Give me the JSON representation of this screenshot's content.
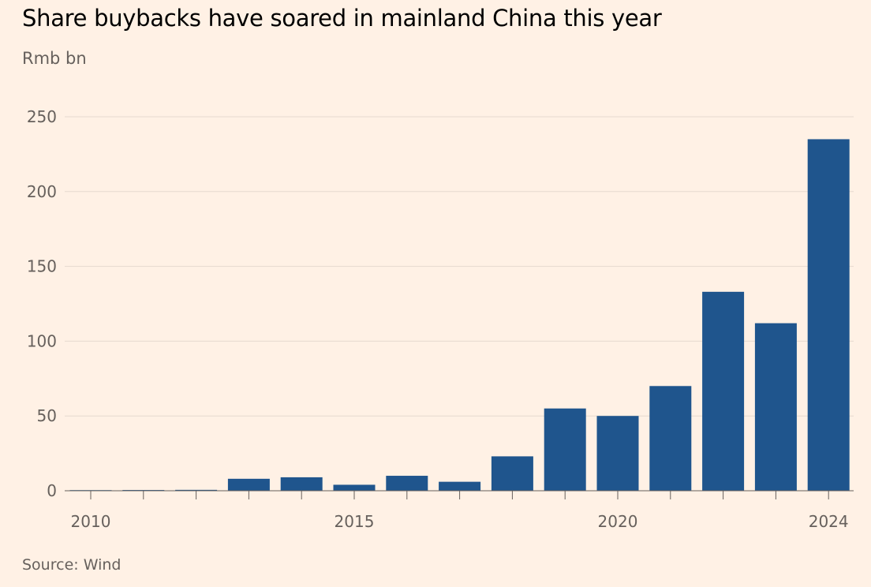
{
  "title": "Share buybacks have soared in mainland China this year",
  "subtitle": "Rmb bn",
  "source": "Source: Wind",
  "colors": {
    "background": "#fff1e5",
    "bar": "#1f558d",
    "grid": "#e6d9ce",
    "axis_text": "#66605c"
  },
  "chart_data": {
    "type": "bar",
    "title": "Share buybacks have soared in mainland China this year",
    "ylabel": "Rmb bn",
    "xlabel": "",
    "ylim": [
      0,
      250
    ],
    "yticks": [
      0,
      50,
      100,
      150,
      200,
      250
    ],
    "xtick_labels": [
      "2010",
      "2015",
      "2020",
      "2024"
    ],
    "categories": [
      "2010",
      "2011",
      "2012",
      "2013",
      "2014",
      "2015",
      "2016",
      "2017",
      "2018",
      "2019",
      "2020",
      "2021",
      "2022",
      "2023",
      "2024"
    ],
    "values": [
      0.2,
      0.5,
      0.6,
      8,
      9,
      4,
      10,
      6,
      23,
      55,
      50,
      70,
      133,
      112,
      235
    ],
    "grid": true,
    "legend": "none"
  }
}
